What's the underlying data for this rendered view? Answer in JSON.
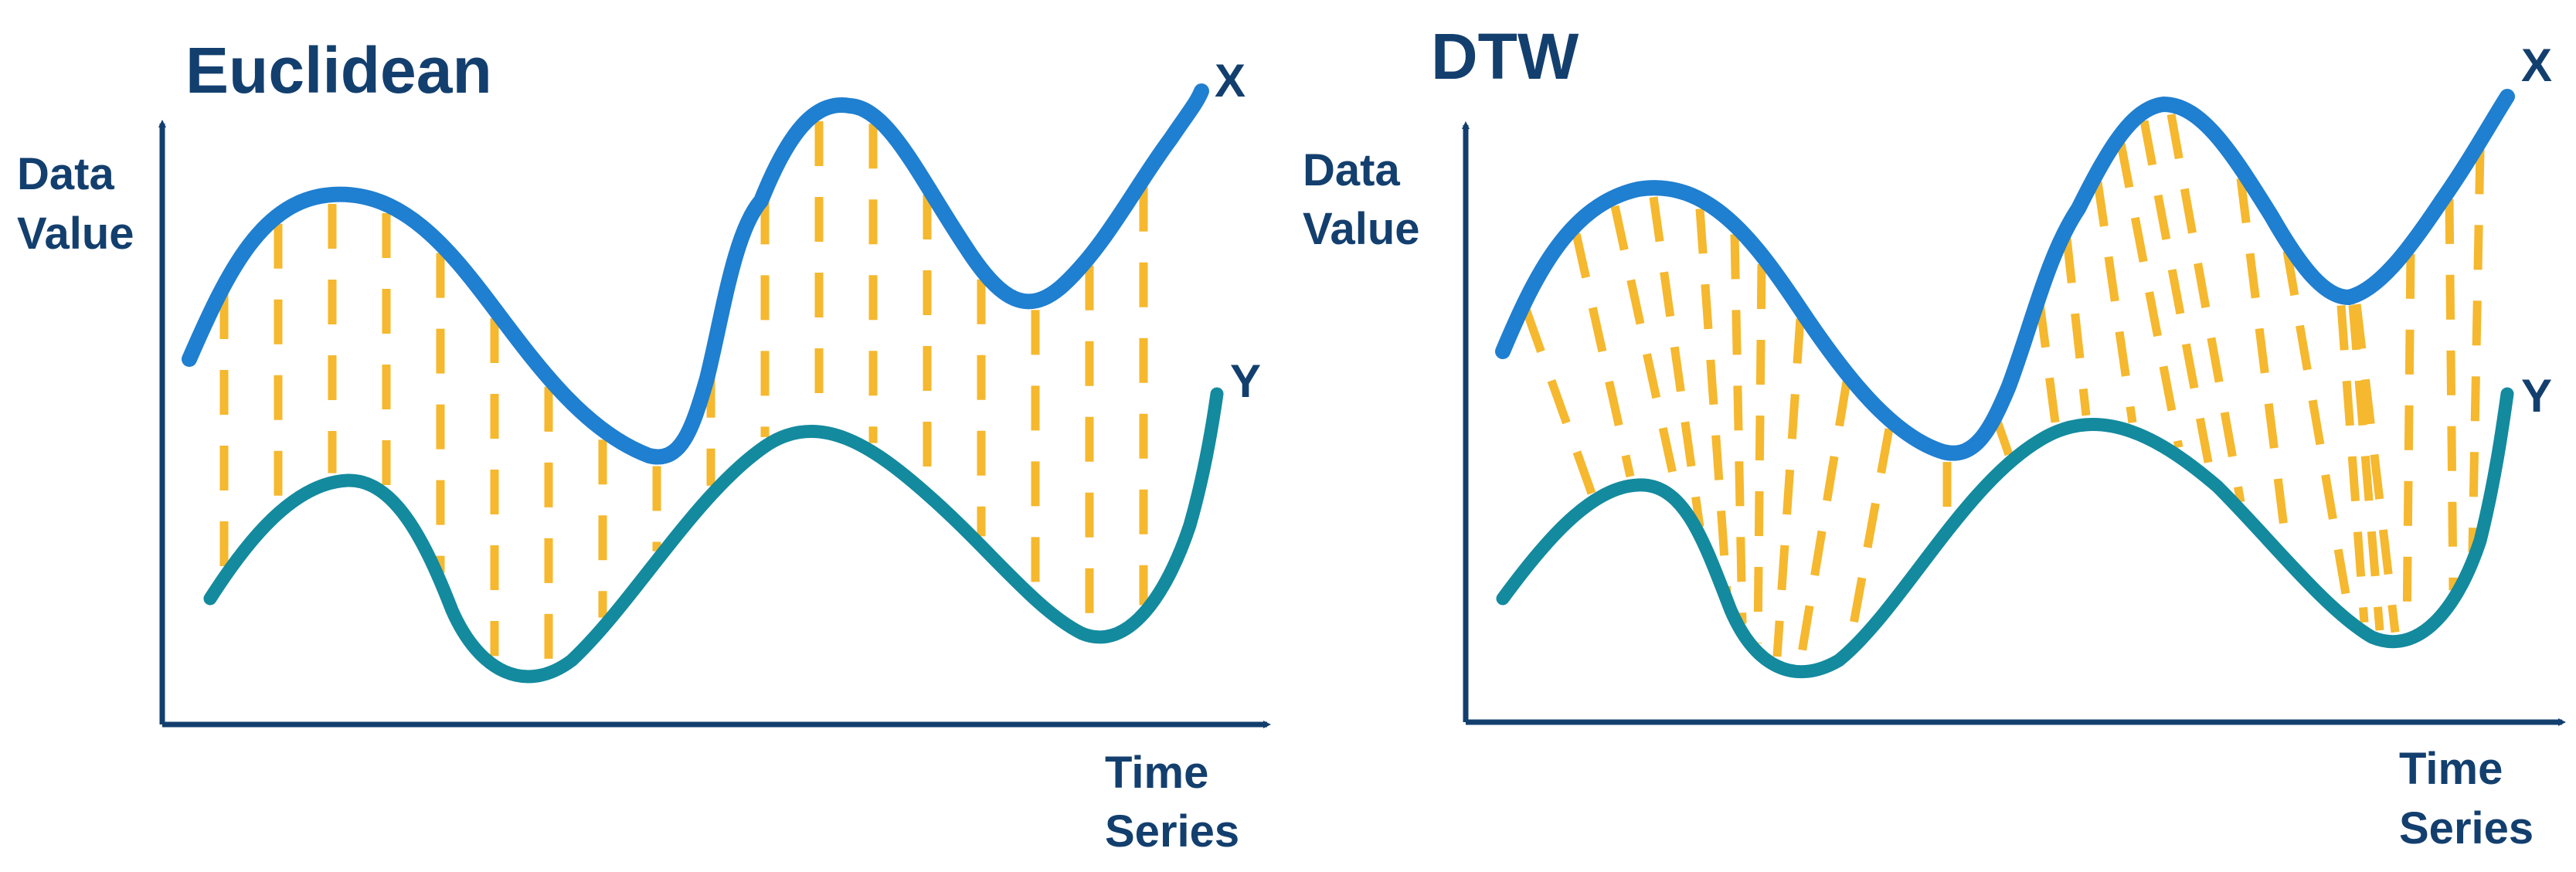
{
  "colors": {
    "axis": "#133F6E",
    "series_x": "#1F7FD0",
    "series_y": "#138A9E",
    "alignment": "#F5B82E"
  },
  "panels": [
    {
      "title": "Euclidean",
      "y_label_line1": "Data",
      "y_label_line2": "Value",
      "x_label_line1": "Time",
      "x_label_line2": "Series",
      "series_x_label": "X",
      "series_y_label": "Y",
      "alignment": "one-to-one at equal time"
    },
    {
      "title": "DTW",
      "y_label_line1": "Data",
      "y_label_line2": "Value",
      "x_label_line1": "Time",
      "x_label_line2": "Series",
      "series_x_label": "X",
      "series_y_label": "Y",
      "alignment": "warped (many-to-one)"
    }
  ]
}
